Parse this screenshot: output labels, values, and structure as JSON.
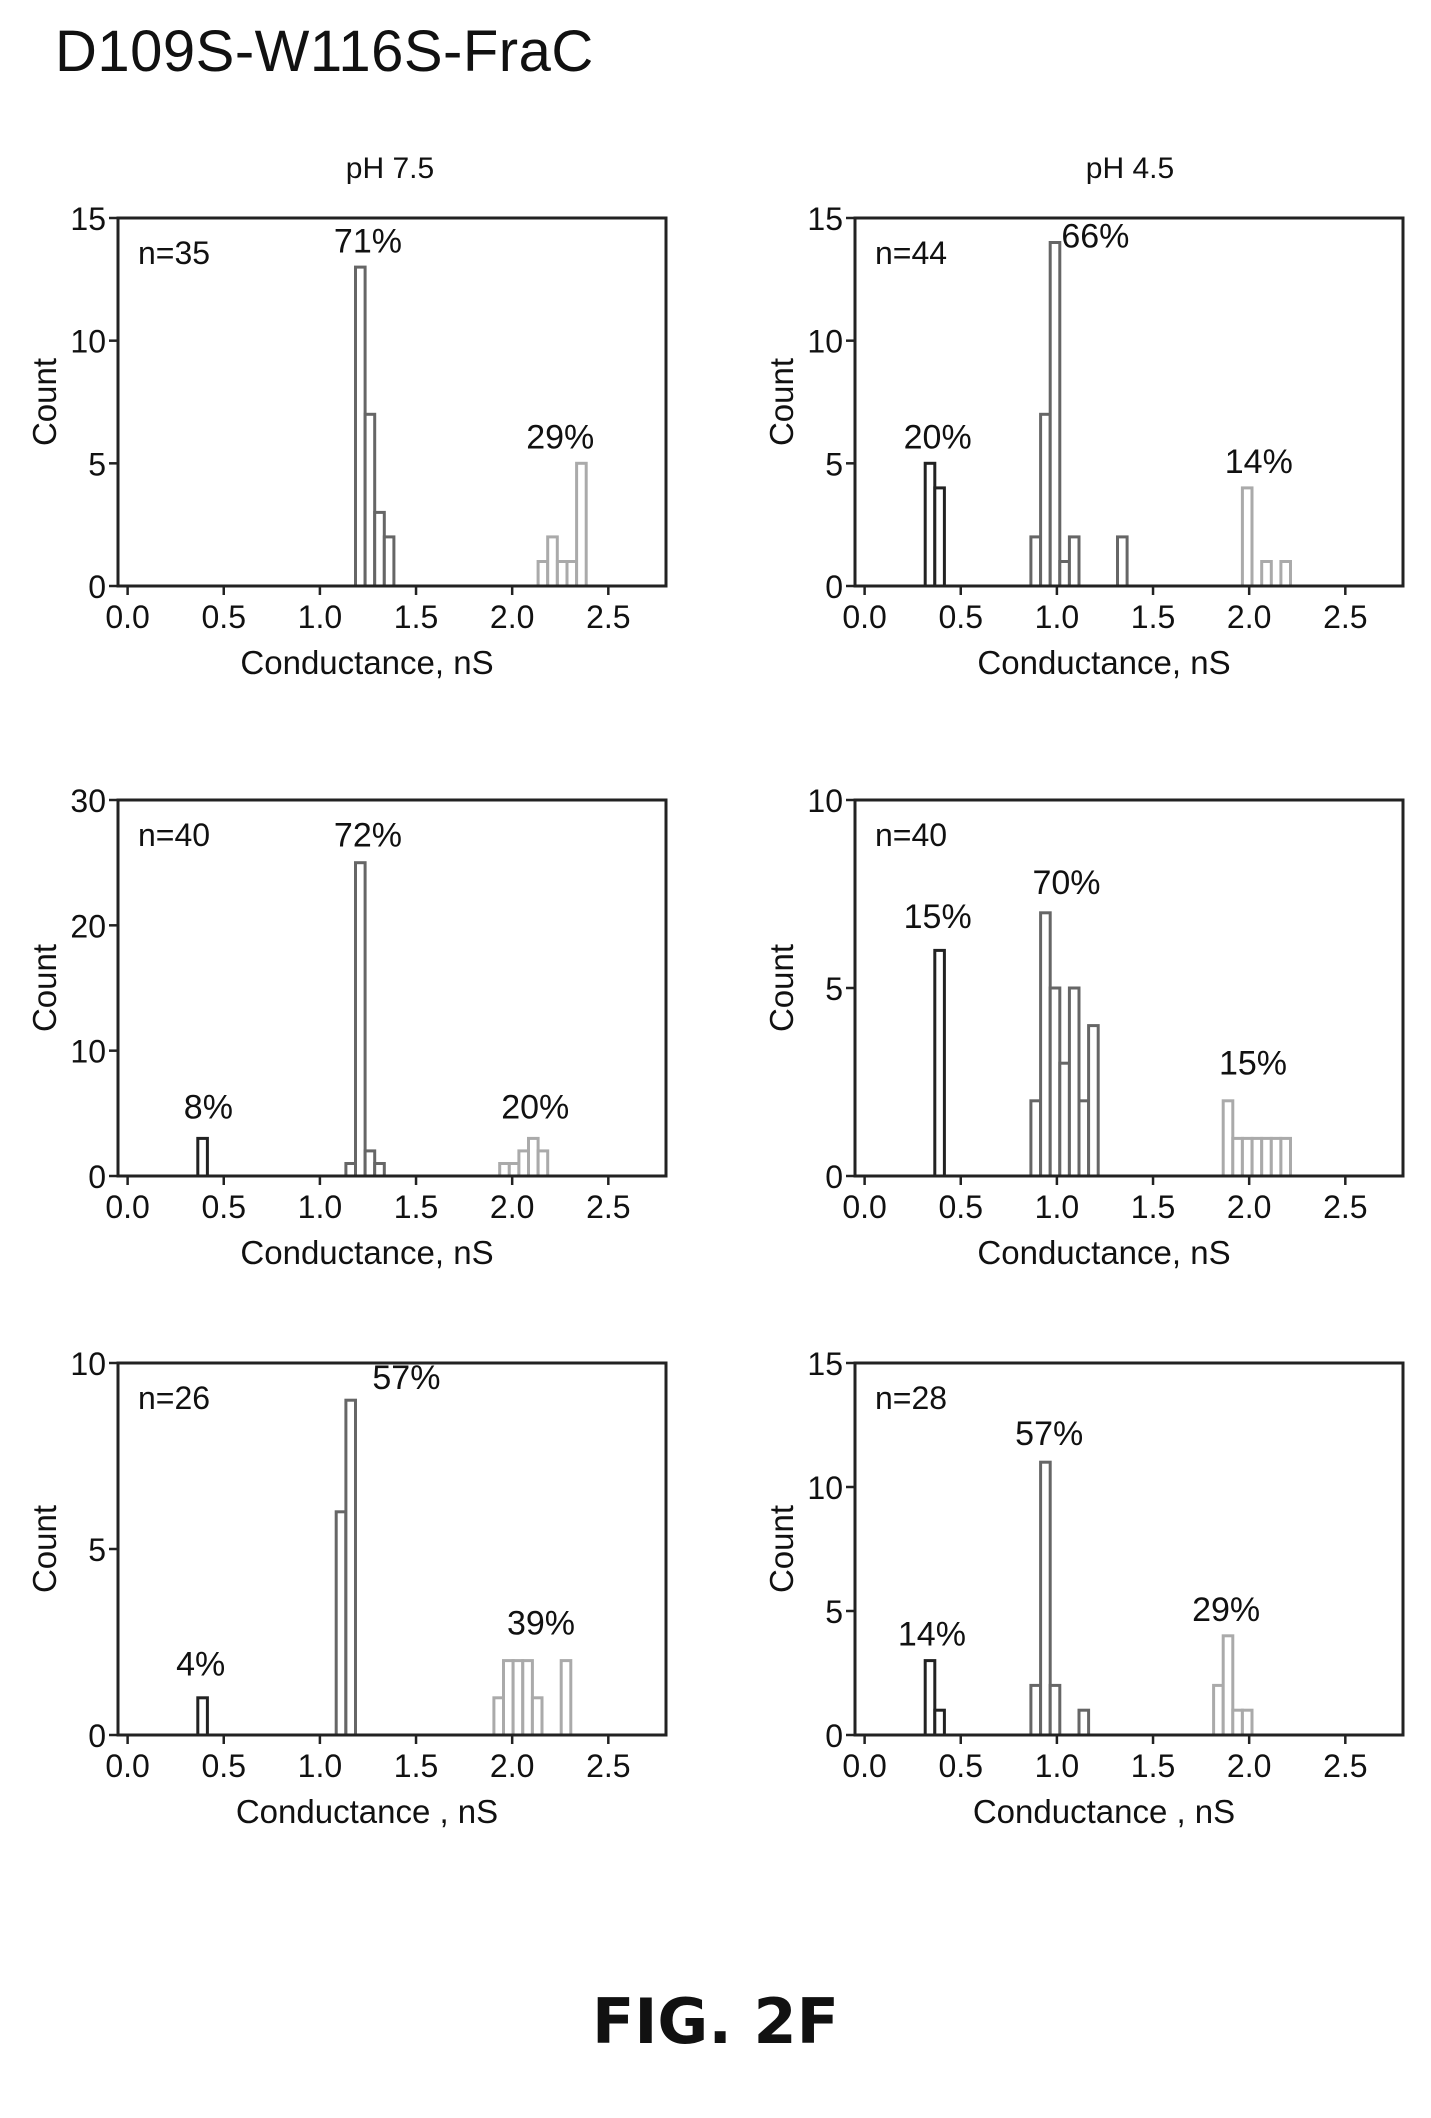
{
  "title": "D109S-W116S-FraC",
  "column_titles": [
    "pH 7.5",
    "pH 4.5"
  ],
  "figure_label": "FIG. 2F",
  "chart_data": [
    {
      "type": "bar",
      "condition": "pH 7.5",
      "n_label": "n=35",
      "xlabel": "Conductance, nS",
      "ylabel": "Count",
      "xlim": [
        -0.05,
        2.8
      ],
      "xticks": [
        0.0,
        0.5,
        1.0,
        1.5,
        2.0,
        2.5
      ],
      "xtick_labels": [
        "0.0",
        "0.5",
        "1.0",
        "1.5",
        "2.0",
        "2.5"
      ],
      "ylim": [
        0,
        15
      ],
      "yticks": [
        0,
        5,
        10,
        15
      ],
      "ytick_labels": [
        "0",
        "5",
        "10",
        "15"
      ],
      "bins": [
        {
          "x": 1.21,
          "count": 13,
          "shade": "#666666"
        },
        {
          "x": 1.26,
          "count": 7,
          "shade": "#666666"
        },
        {
          "x": 1.31,
          "count": 3,
          "shade": "#666666"
        },
        {
          "x": 1.36,
          "count": 2,
          "shade": "#666666"
        },
        {
          "x": 2.16,
          "count": 1,
          "shade": "#aaaaaa"
        },
        {
          "x": 2.21,
          "count": 2,
          "shade": "#aaaaaa"
        },
        {
          "x": 2.26,
          "count": 1,
          "shade": "#aaaaaa"
        },
        {
          "x": 2.31,
          "count": 1,
          "shade": "#aaaaaa"
        },
        {
          "x": 2.36,
          "count": 5,
          "shade": "#aaaaaa"
        }
      ],
      "annotations": [
        {
          "text": "71%",
          "x": 1.25,
          "y": 13.6
        },
        {
          "text": "29%",
          "x": 2.25,
          "y": 5.6
        }
      ]
    },
    {
      "type": "bar",
      "condition": "pH 4.5",
      "n_label": "n=44",
      "xlabel": "Conductance, nS",
      "ylabel": "Count",
      "xlim": [
        -0.05,
        2.8
      ],
      "xticks": [
        0.0,
        0.5,
        1.0,
        1.5,
        2.0,
        2.5
      ],
      "xtick_labels": [
        "0.0",
        "0.5",
        "1.0",
        "1.5",
        "2.0",
        "2.5"
      ],
      "ylim": [
        0,
        15
      ],
      "yticks": [
        0,
        5,
        10,
        15
      ],
      "ytick_labels": [
        "0",
        "5",
        "10",
        "15"
      ],
      "bins": [
        {
          "x": 0.34,
          "count": 5,
          "shade": "#222222"
        },
        {
          "x": 0.39,
          "count": 4,
          "shade": "#222222"
        },
        {
          "x": 0.89,
          "count": 2,
          "shade": "#666666"
        },
        {
          "x": 0.94,
          "count": 7,
          "shade": "#666666"
        },
        {
          "x": 0.99,
          "count": 14,
          "shade": "#666666"
        },
        {
          "x": 1.04,
          "count": 1,
          "shade": "#666666"
        },
        {
          "x": 1.09,
          "count": 2,
          "shade": "#666666"
        },
        {
          "x": 1.34,
          "count": 2,
          "shade": "#666666"
        },
        {
          "x": 1.99,
          "count": 4,
          "shade": "#aaaaaa"
        },
        {
          "x": 2.09,
          "count": 1,
          "shade": "#aaaaaa"
        },
        {
          "x": 2.19,
          "count": 1,
          "shade": "#aaaaaa"
        }
      ],
      "annotations": [
        {
          "text": "20%",
          "x": 0.38,
          "y": 5.6
        },
        {
          "text": "66%",
          "x": 1.2,
          "y": 13.8
        },
        {
          "text": "14%",
          "x": 2.05,
          "y": 4.6
        }
      ]
    },
    {
      "type": "bar",
      "condition": "pH 7.5",
      "n_label": "n=40",
      "xlabel": "Conductance, nS",
      "ylabel": "Count",
      "xlim": [
        -0.05,
        2.8
      ],
      "xticks": [
        0.0,
        0.5,
        1.0,
        1.5,
        2.0,
        2.5
      ],
      "xtick_labels": [
        "0.0",
        "0.5",
        "1.0",
        "1.5",
        "2.0",
        "2.5"
      ],
      "ylim": [
        0,
        30
      ],
      "yticks": [
        0,
        10,
        20,
        30
      ],
      "ytick_labels": [
        "0",
        "10",
        "20",
        "30"
      ],
      "bins": [
        {
          "x": 0.39,
          "count": 3,
          "shade": "#222222"
        },
        {
          "x": 1.16,
          "count": 1,
          "shade": "#666666"
        },
        {
          "x": 1.21,
          "count": 25,
          "shade": "#666666"
        },
        {
          "x": 1.26,
          "count": 2,
          "shade": "#666666"
        },
        {
          "x": 1.31,
          "count": 1,
          "shade": "#666666"
        },
        {
          "x": 1.96,
          "count": 1,
          "shade": "#aaaaaa"
        },
        {
          "x": 2.01,
          "count": 1,
          "shade": "#aaaaaa"
        },
        {
          "x": 2.06,
          "count": 2,
          "shade": "#aaaaaa"
        },
        {
          "x": 2.11,
          "count": 3,
          "shade": "#aaaaaa"
        },
        {
          "x": 2.16,
          "count": 2,
          "shade": "#aaaaaa"
        }
      ],
      "annotations": [
        {
          "text": "8%",
          "x": 0.42,
          "y": 4.6
        },
        {
          "text": "72%",
          "x": 1.25,
          "y": 26.3
        },
        {
          "text": "20%",
          "x": 2.12,
          "y": 4.6
        }
      ]
    },
    {
      "type": "bar",
      "condition": "pH 4.5",
      "n_label": "n=40",
      "xlabel": "Conductance, nS",
      "ylabel": "Count",
      "xlim": [
        -0.05,
        2.8
      ],
      "xticks": [
        0.0,
        0.5,
        1.0,
        1.5,
        2.0,
        2.5
      ],
      "xtick_labels": [
        "0.0",
        "0.5",
        "1.0",
        "1.5",
        "2.0",
        "2.5"
      ],
      "ylim": [
        0,
        10
      ],
      "yticks": [
        0,
        5,
        10
      ],
      "ytick_labels": [
        "0",
        "5",
        "10"
      ],
      "bins": [
        {
          "x": 0.39,
          "count": 6,
          "shade": "#222222"
        },
        {
          "x": 0.89,
          "count": 2,
          "shade": "#666666"
        },
        {
          "x": 0.94,
          "count": 7,
          "shade": "#666666"
        },
        {
          "x": 0.99,
          "count": 5,
          "shade": "#666666"
        },
        {
          "x": 1.04,
          "count": 3,
          "shade": "#666666"
        },
        {
          "x": 1.09,
          "count": 5,
          "shade": "#666666"
        },
        {
          "x": 1.14,
          "count": 2,
          "shade": "#666666"
        },
        {
          "x": 1.19,
          "count": 4,
          "shade": "#666666"
        },
        {
          "x": 1.89,
          "count": 2,
          "shade": "#aaaaaa"
        },
        {
          "x": 1.94,
          "count": 1,
          "shade": "#aaaaaa"
        },
        {
          "x": 1.99,
          "count": 1,
          "shade": "#aaaaaa"
        },
        {
          "x": 2.04,
          "count": 1,
          "shade": "#aaaaaa"
        },
        {
          "x": 2.09,
          "count": 1,
          "shade": "#aaaaaa"
        },
        {
          "x": 2.14,
          "count": 1,
          "shade": "#aaaaaa"
        },
        {
          "x": 2.19,
          "count": 1,
          "shade": "#aaaaaa"
        }
      ],
      "annotations": [
        {
          "text": "15%",
          "x": 0.38,
          "y": 6.6
        },
        {
          "text": "70%",
          "x": 1.05,
          "y": 7.5
        },
        {
          "text": "15%",
          "x": 2.02,
          "y": 2.7
        }
      ]
    },
    {
      "type": "bar",
      "condition": "pH 7.5",
      "n_label": "n=26",
      "xlabel": "Conductance , nS",
      "ylabel": "Count",
      "xlim": [
        -0.05,
        2.8
      ],
      "xticks": [
        0.0,
        0.5,
        1.0,
        1.5,
        2.0,
        2.5
      ],
      "xtick_labels": [
        "0.0",
        "0.5",
        "1.0",
        "1.5",
        "2.0",
        "2.5"
      ],
      "ylim": [
        0,
        10
      ],
      "yticks": [
        0,
        5,
        10
      ],
      "ytick_labels": [
        "0",
        "5",
        "10"
      ],
      "bins": [
        {
          "x": 0.39,
          "count": 1,
          "shade": "#222222"
        },
        {
          "x": 1.11,
          "count": 6,
          "shade": "#666666"
        },
        {
          "x": 1.16,
          "count": 9,
          "shade": "#666666"
        },
        {
          "x": 1.93,
          "count": 1,
          "shade": "#aaaaaa"
        },
        {
          "x": 1.98,
          "count": 2,
          "shade": "#aaaaaa"
        },
        {
          "x": 2.03,
          "count": 2,
          "shade": "#aaaaaa"
        },
        {
          "x": 2.08,
          "count": 2,
          "shade": "#aaaaaa"
        },
        {
          "x": 2.13,
          "count": 1,
          "shade": "#aaaaaa"
        },
        {
          "x": 2.28,
          "count": 2,
          "shade": "#aaaaaa"
        }
      ],
      "annotations": [
        {
          "text": "4%",
          "x": 0.38,
          "y": 1.6
        },
        {
          "text": "57%",
          "x": 1.45,
          "y": 9.3
        },
        {
          "text": "39%",
          "x": 2.15,
          "y": 2.7
        }
      ]
    },
    {
      "type": "bar",
      "condition": "pH 4.5",
      "n_label": "n=28",
      "xlabel": "Conductance , nS",
      "ylabel": "Count",
      "xlim": [
        -0.05,
        2.8
      ],
      "xticks": [
        0.0,
        0.5,
        1.0,
        1.5,
        2.0,
        2.5
      ],
      "xtick_labels": [
        "0.0",
        "0.5",
        "1.0",
        "1.5",
        "2.0",
        "2.5"
      ],
      "ylim": [
        0,
        15
      ],
      "yticks": [
        0,
        5,
        10,
        15
      ],
      "ytick_labels": [
        "0",
        "5",
        "10",
        "15"
      ],
      "bins": [
        {
          "x": 0.34,
          "count": 3,
          "shade": "#222222"
        },
        {
          "x": 0.39,
          "count": 1,
          "shade": "#222222"
        },
        {
          "x": 0.89,
          "count": 2,
          "shade": "#666666"
        },
        {
          "x": 0.94,
          "count": 11,
          "shade": "#666666"
        },
        {
          "x": 0.99,
          "count": 2,
          "shade": "#666666"
        },
        {
          "x": 1.14,
          "count": 1,
          "shade": "#666666"
        },
        {
          "x": 1.84,
          "count": 2,
          "shade": "#aaaaaa"
        },
        {
          "x": 1.89,
          "count": 4,
          "shade": "#aaaaaa"
        },
        {
          "x": 1.94,
          "count": 1,
          "shade": "#aaaaaa"
        },
        {
          "x": 1.99,
          "count": 1,
          "shade": "#aaaaaa"
        }
      ],
      "annotations": [
        {
          "text": "14%",
          "x": 0.35,
          "y": 3.6
        },
        {
          "text": "57%",
          "x": 0.96,
          "y": 11.7
        },
        {
          "text": "29%",
          "x": 1.88,
          "y": 4.6
        }
      ]
    }
  ]
}
